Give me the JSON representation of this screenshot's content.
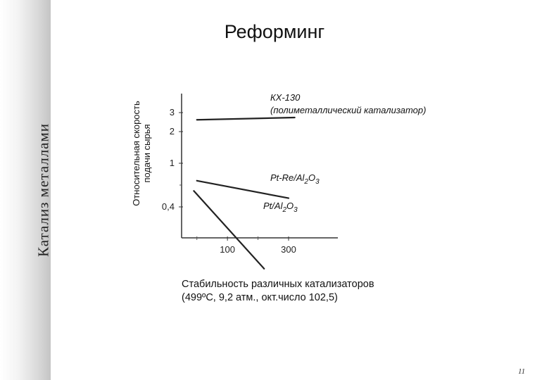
{
  "section_title": "Катализ металлами",
  "slide_title": "Реформинг",
  "page_number": "11",
  "caption": {
    "line1": "Стабильность различных катализаторов",
    "line2": "(499ºС, 9,2 атм., окт.число 102,5)"
  },
  "chart_data": {
    "type": "line",
    "title": "",
    "ylabel": [
      "Относительная скорость",
      "подачи сырья"
    ],
    "xlabel": "",
    "xlim": [
      -50,
      350
    ],
    "x_ticks": [
      100,
      300
    ],
    "y_ticks": [
      {
        "value": 0.4,
        "label": "0,4"
      },
      {
        "value": 1,
        "label": "1"
      },
      {
        "value": 2,
        "label": "2"
      },
      {
        "value": 3,
        "label": "3"
      }
    ],
    "grid": false,
    "series": [
      {
        "name": "КХ-130",
        "name_line2": "(полиметаллический катализатор)",
        "color": "#222222",
        "x": [
          0,
          320
        ],
        "y": [
          2.62,
          2.74
        ]
      },
      {
        "name": "Pt-Re/Al",
        "name_sub": "2",
        "name_mid": "O",
        "name_sub2": "3",
        "color": "#222222",
        "x": [
          0,
          300
        ],
        "y": [
          0.76,
          0.52
        ]
      },
      {
        "name": "Pt/Al",
        "name_sub": "2",
        "name_mid": "O",
        "name_sub2": "3",
        "color": "#222222",
        "x": [
          -10,
          220
        ],
        "y": [
          0.62,
          -0.45
        ]
      }
    ]
  }
}
